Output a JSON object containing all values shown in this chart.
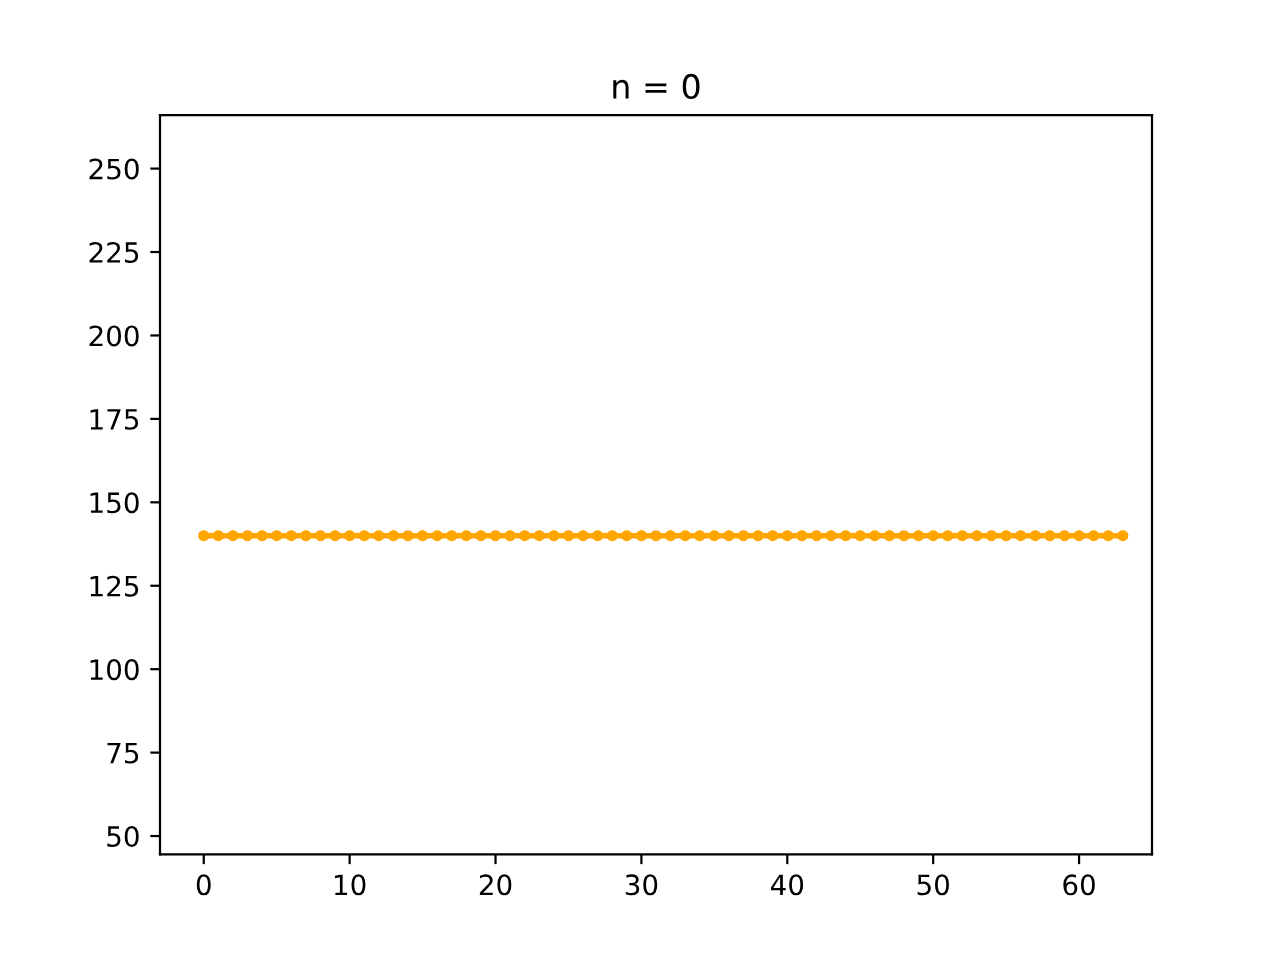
{
  "chart_data": {
    "type": "line",
    "title": "n = 0",
    "x": [
      0,
      1,
      2,
      3,
      4,
      5,
      6,
      7,
      8,
      9,
      10,
      11,
      12,
      13,
      14,
      15,
      16,
      17,
      18,
      19,
      20,
      21,
      22,
      23,
      24,
      25,
      26,
      27,
      28,
      29,
      30,
      31,
      32,
      33,
      34,
      35,
      36,
      37,
      38,
      39,
      40,
      41,
      42,
      43,
      44,
      45,
      46,
      47,
      48,
      49,
      50,
      51,
      52,
      53,
      54,
      55,
      56,
      57,
      58,
      59,
      60,
      61,
      62,
      63
    ],
    "series": [
      {
        "color": "#ffa500",
        "values": [
          140,
          140,
          140,
          140,
          140,
          140,
          140,
          140,
          140,
          140,
          140,
          140,
          140,
          140,
          140,
          140,
          140,
          140,
          140,
          140,
          140,
          140,
          140,
          140,
          140,
          140,
          140,
          140,
          140,
          140,
          140,
          140,
          140,
          140,
          140,
          140,
          140,
          140,
          140,
          140,
          140,
          140,
          140,
          140,
          140,
          140,
          140,
          140,
          140,
          140,
          140,
          140,
          140,
          140,
          140,
          140,
          140,
          140,
          140,
          140,
          140,
          140,
          140,
          140
        ]
      }
    ],
    "xlim": [
      -3,
      65
    ],
    "xticks": [
      0,
      10,
      20,
      30,
      40,
      50,
      60
    ],
    "ylim": [
      44.5,
      266
    ],
    "yticks": [
      50,
      75,
      100,
      125,
      150,
      175,
      200,
      225,
      250
    ],
    "marker": "circle",
    "line_style": "solid",
    "grid": false,
    "legend": false
  }
}
